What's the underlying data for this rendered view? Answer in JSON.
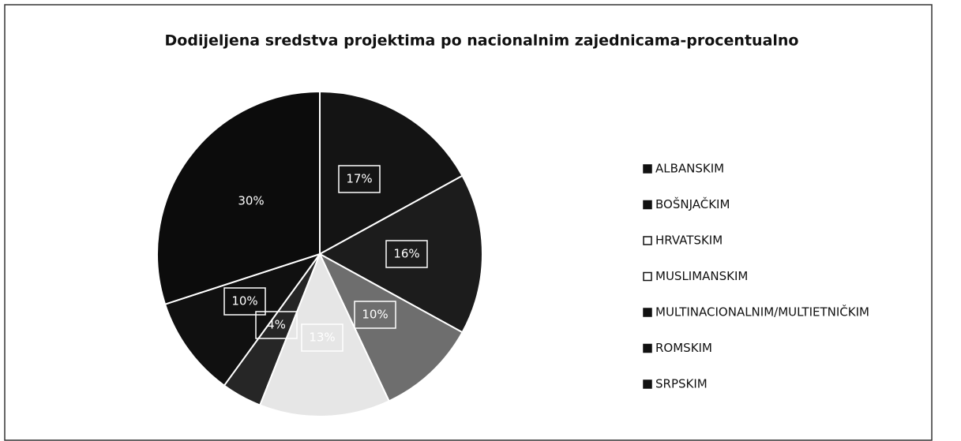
{
  "chart_data": {
    "type": "pie",
    "title": "Dodijeljena sredstva projektima po nacionalnim zajednicama-procentualno",
    "categories": [
      "ALBANSKIM",
      "BOŠNJAČKIM",
      "HRVATSKIM",
      "MUSLIMANSKIM",
      "MULTINACIONALNIM/MULTIETNIČKIM",
      "ROMSKIM",
      "SRPSKIM"
    ],
    "values": [
      17,
      16,
      10,
      13,
      4,
      10,
      30
    ],
    "value_labels": [
      "17%",
      "16%",
      "10%",
      "13%",
      "4%",
      "10%",
      "30%"
    ],
    "colors": [
      "#141414",
      "#1c1c1c",
      "#6e6e6e",
      "#e6e6e6",
      "#262626",
      "#101010",
      "#0c0c0c"
    ],
    "legend": "right"
  }
}
